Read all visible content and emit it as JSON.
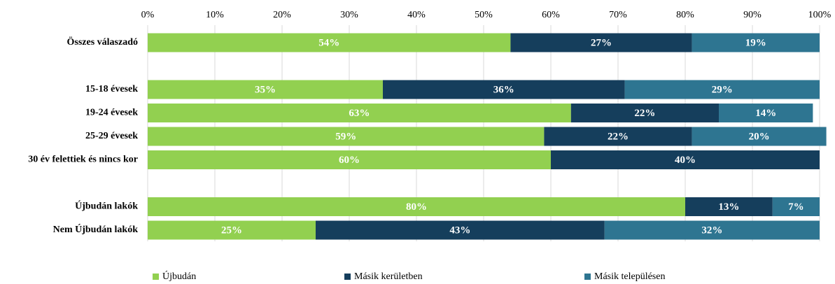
{
  "chart_data": {
    "type": "stacked-barh",
    "categories": [
      "Összes válaszadó",
      null,
      "15-18 évesek",
      "19-24 évesek",
      "25-29 évesek",
      "30 év felettiek és nincs kor",
      null,
      "Újbudán lakók",
      "Nem Újbudán lakók"
    ],
    "series": [
      {
        "name": "Újbudán",
        "color": "#92d050",
        "values": [
          54,
          null,
          35,
          63,
          59,
          60,
          null,
          80,
          25
        ],
        "value_labels": [
          "54%",
          null,
          "35%",
          "63%",
          "59%",
          "60%",
          null,
          "80%",
          "25%"
        ]
      },
      {
        "name": "Másik kerületben",
        "color": "#153e5c",
        "values": [
          27,
          null,
          36,
          22,
          22,
          40,
          null,
          13,
          43
        ],
        "value_labels": [
          "27%",
          null,
          "36%",
          "22%",
          "22%",
          "40%",
          null,
          "13%",
          "43%"
        ]
      },
      {
        "name": "Másik településen",
        "color": "#2e7591",
        "values": [
          19,
          null,
          29,
          14,
          20,
          null,
          null,
          7,
          32
        ],
        "value_labels": [
          "19%",
          null,
          "29%",
          "14%",
          "20%",
          null,
          null,
          "7%",
          "32%"
        ]
      }
    ],
    "xlim": [
      0,
      100
    ],
    "xticks": [
      {
        "value": 0,
        "label": "0%"
      },
      {
        "value": 10,
        "label": "10%"
      },
      {
        "value": 20,
        "label": "20%"
      },
      {
        "value": 30,
        "label": "30%"
      },
      {
        "value": 40,
        "label": "40%"
      },
      {
        "value": 50,
        "label": "50%"
      },
      {
        "value": 60,
        "label": "60%"
      },
      {
        "value": 70,
        "label": "70%"
      },
      {
        "value": 80,
        "label": "80%"
      },
      {
        "value": 90,
        "label": "90%"
      },
      {
        "value": 100,
        "label": "100%"
      }
    ],
    "grid": true,
    "legend": "bottom"
  }
}
